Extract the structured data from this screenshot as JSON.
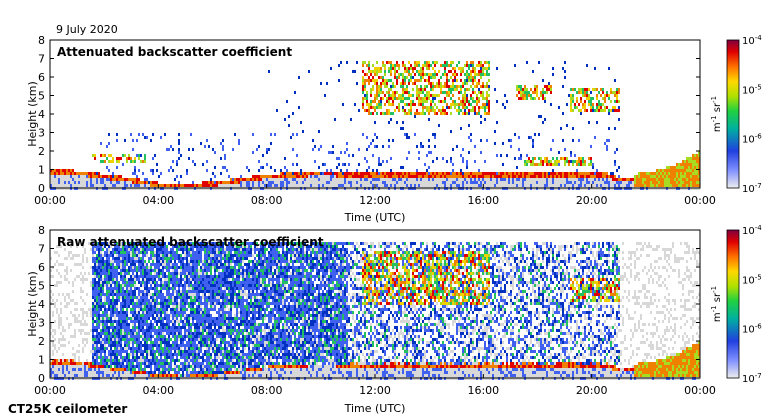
{
  "header": {
    "date": "9 July 2020"
  },
  "footer": {
    "instrument": "CT25K ceilometer"
  },
  "colormap": [
    "#d8d8d8",
    "#4060f0",
    "#0030c0",
    "#22c060",
    "#a8dc20",
    "#f0d000",
    "#f08000",
    "#e00000",
    "#800030"
  ],
  "chart_data": [
    {
      "type": "heatmap",
      "id": "top",
      "title": "Attenuated backscatter coefficient",
      "xlabel": "Time (UTC)",
      "ylabel": "Height (km)",
      "x_ticks": [
        "00:00",
        "04:00",
        "08:00",
        "12:00",
        "16:00",
        "20:00",
        "00:00"
      ],
      "y_ticks": [
        "0",
        "1",
        "2",
        "3",
        "4",
        "5",
        "6",
        "7",
        "8"
      ],
      "xlim_hours": [
        0,
        24
      ],
      "ylim_km": [
        0,
        8
      ],
      "colorbar": {
        "label": "m-1 sr-1",
        "ticks": [
          "10",
          "10",
          "10",
          "10"
        ],
        "exponents": [
          "-7",
          "-6",
          "-5",
          "-4"
        ],
        "range": [
          1e-07,
          0.0001
        ]
      },
      "features": [
        {
          "name": "boundary layer top",
          "points": [
            [
              0,
              0.95
            ],
            [
              1,
              0.9
            ],
            [
              2,
              0.7
            ],
            [
              3,
              0.5
            ],
            [
              4,
              0.25
            ],
            [
              5,
              0.2
            ],
            [
              6,
              0.3
            ],
            [
              7,
              0.5
            ],
            [
              8,
              0.7
            ],
            [
              9,
              0.8
            ],
            [
              10,
              0.85
            ],
            [
              11,
              0.8
            ],
            [
              20.5,
              0.8
            ],
            [
              21,
              0.5
            ],
            [
              22,
              0.6
            ],
            [
              23,
              1.0
            ],
            [
              24,
              1.8
            ]
          ]
        },
        {
          "name": "low cloud",
          "start_h": 1.5,
          "end_h": 3.5,
          "base_km": 1.5,
          "top_km": 1.9
        },
        {
          "name": "mid-level cloud",
          "start_h": 11.5,
          "end_h": 16.2,
          "base_km": 4.0,
          "top_km": 7.0
        },
        {
          "name": "mid-level cloud",
          "start_h": 17.2,
          "end_h": 18.5,
          "base_km": 4.9,
          "top_km": 5.6
        },
        {
          "name": "mid-level cloud",
          "start_h": 19.2,
          "end_h": 21.0,
          "base_km": 4.2,
          "top_km": 5.5
        },
        {
          "name": "low cloud",
          "start_h": 17.5,
          "end_h": 20.0,
          "base_km": 1.3,
          "top_km": 1.7
        }
      ]
    },
    {
      "type": "heatmap",
      "id": "bottom",
      "title": "Raw attenuated backscatter coefficient",
      "xlabel": "Time (UTC)",
      "ylabel": "Height (km)",
      "x_ticks": [
        "00:00",
        "04:00",
        "08:00",
        "12:00",
        "16:00",
        "20:00",
        "00:00"
      ],
      "y_ticks": [
        "0",
        "1",
        "2",
        "3",
        "4",
        "5",
        "6",
        "7",
        "8"
      ],
      "xlim_hours": [
        0,
        24
      ],
      "ylim_km": [
        0,
        8
      ],
      "colorbar": {
        "label": "m-1 sr-1",
        "ticks": [
          "10",
          "10",
          "10",
          "10"
        ],
        "exponents": [
          "-7",
          "-6",
          "-5",
          "-4"
        ],
        "range": [
          1e-07,
          0.0001
        ]
      },
      "features": [
        {
          "name": "noise layer",
          "start_h": 1.5,
          "end_h": 11.0,
          "base_km": 0,
          "top_km": 7.5
        },
        {
          "name": "mid-level cloud",
          "start_h": 11.5,
          "end_h": 16.2,
          "base_km": 4.0,
          "top_km": 7.0
        },
        {
          "name": "mid-level cloud",
          "start_h": 19.2,
          "end_h": 21.0,
          "base_km": 4.2,
          "top_km": 5.5
        }
      ]
    }
  ]
}
